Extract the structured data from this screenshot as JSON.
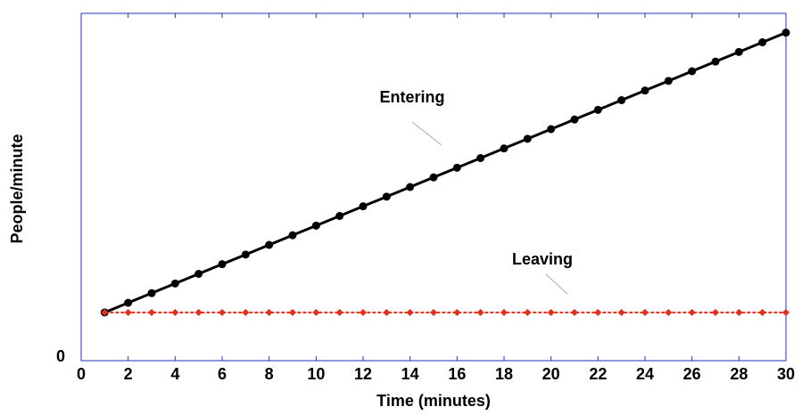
{
  "chart_data": {
    "type": "line",
    "xlabel": "Time (minutes)",
    "ylabel": "People/minute",
    "x": [
      1,
      2,
      3,
      4,
      5,
      6,
      7,
      8,
      9,
      10,
      11,
      12,
      13,
      14,
      15,
      16,
      17,
      18,
      19,
      20,
      21,
      22,
      23,
      24,
      25,
      26,
      27,
      28,
      29,
      30
    ],
    "series": [
      {
        "name": "Entering",
        "color": "#000000",
        "marker": "circle",
        "dash": false,
        "values": [
          10,
          12,
          14,
          16,
          18,
          20,
          22,
          24,
          26,
          28,
          30,
          32,
          34,
          36,
          38,
          40,
          42,
          44,
          46,
          48,
          50,
          52,
          54,
          56,
          58,
          60,
          62,
          64,
          66,
          68
        ]
      },
      {
        "name": "Leaving",
        "color": "#e0301a",
        "marker": "diamond",
        "dash": true,
        "values": [
          10,
          10,
          10,
          10,
          10,
          10,
          10,
          10,
          10,
          10,
          10,
          10,
          10,
          10,
          10,
          10,
          10,
          10,
          10,
          10,
          10,
          10,
          10,
          10,
          10,
          10,
          10,
          10,
          10,
          10
        ]
      }
    ],
    "xlim": [
      0,
      30
    ],
    "xticks": [
      0,
      2,
      4,
      6,
      8,
      10,
      12,
      14,
      16,
      18,
      20,
      22,
      24,
      26,
      28,
      30
    ],
    "ylim": [
      0,
      72
    ],
    "yticks": [
      0
    ]
  }
}
